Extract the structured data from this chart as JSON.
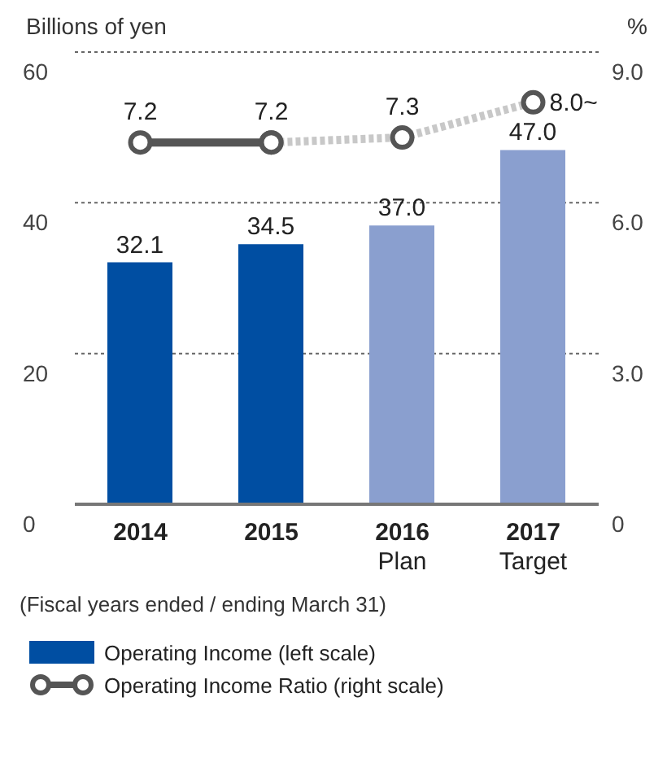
{
  "chart_data": {
    "type": "bar",
    "ylabel": "Billions of yen",
    "y2label": "%",
    "categories": [
      "2014",
      "2015",
      "2016\nPlan",
      "2017\nTarget"
    ],
    "series": [
      {
        "name": "Operating Income (left scale)",
        "color": "#004ea2",
        "colors": [
          "#004ea2",
          "#004ea2",
          "#8a9fcf",
          "#8a9fcf"
        ],
        "values": [
          32.1,
          34.5,
          37.0,
          47.0
        ],
        "value_labels": [
          "32.1",
          "34.5",
          "37.0",
          "47.0"
        ]
      },
      {
        "type": "line",
        "axis": "y2",
        "color": "#c8c8c8",
        "line_style": "dashed",
        "marker": "circle",
        "values": [
          null,
          7.2,
          7.3,
          8.0
        ],
        "value_labels": [
          null,
          null,
          "7.3",
          "8.0~"
        ]
      },
      {
        "name": "Operating Income Ratio (right scale)",
        "type": "line",
        "axis": "y2",
        "color": "#555555",
        "line_style": "solid",
        "marker": "circle",
        "values": [
          7.2,
          7.2,
          null,
          null
        ],
        "value_labels": [
          "7.2",
          "7.2",
          null,
          null
        ]
      }
    ],
    "ylim": [
      0,
      60
    ],
    "yticks": [
      0,
      20,
      40,
      60
    ],
    "y2lim": [
      0,
      9
    ],
    "y2ticks": [
      {
        "value": 0,
        "label": "0"
      },
      {
        "value": 3,
        "label": "3.0"
      },
      {
        "value": 6,
        "label": "6.0"
      },
      {
        "value": 9,
        "label": "9.0"
      }
    ],
    "grid": "y",
    "legend": "bottom",
    "annotations": [
      "(Fiscal years ended / ending March 31)"
    ]
  }
}
